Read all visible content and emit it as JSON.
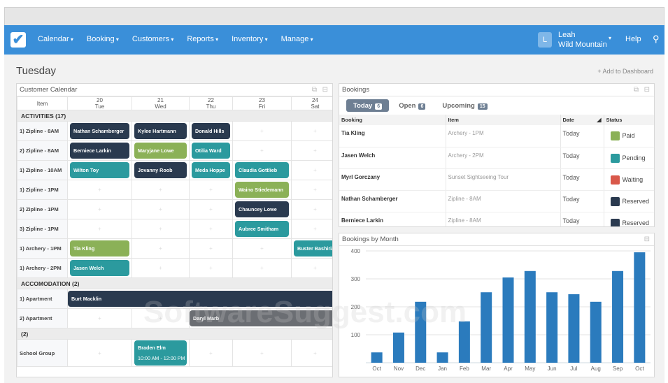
{
  "nav": {
    "logo": "✔",
    "items": [
      "Calendar",
      "Booking",
      "Customers",
      "Reports",
      "Inventory",
      "Manage"
    ],
    "user_initial": "L",
    "user_name": "Leah",
    "user_org": "Wild Mountain",
    "help": "Help"
  },
  "page": {
    "title": "Tuesday",
    "add_to_dashboard": "+ Add to Dashboard"
  },
  "colors": {
    "dark": "#2a3a4f",
    "green": "#8bb157",
    "teal": "#2b9a9e",
    "grey": "#6b6e73",
    "red": "#d9584a",
    "accent": "#3a8fd9"
  },
  "calendar": {
    "title": "Customer Calendar",
    "item_header": "Item",
    "days": [
      {
        "num": "20",
        "day": "Tue"
      },
      {
        "num": "21",
        "day": "Wed"
      },
      {
        "num": "22",
        "day": "Thu"
      },
      {
        "num": "23",
        "day": "Fri"
      },
      {
        "num": "24",
        "day": "Sat"
      }
    ],
    "empty_cell": "+",
    "sections": [
      {
        "label": "ACTIVITIES (17)",
        "rows": [
          {
            "item": "1) Zipline - 8AM",
            "cells": [
              {
                "name": "Nathan Schamberger",
                "color": "dark"
              },
              {
                "name": "Kylee Hartmann",
                "color": "dark"
              },
              {
                "name": "Donald Hills",
                "color": "dark"
              },
              null,
              null
            ]
          },
          {
            "item": "2) Zipline - 8AM",
            "cells": [
              {
                "name": "Berniece Larkin",
                "color": "dark"
              },
              {
                "name": "Maryjane Lowe",
                "color": "green"
              },
              {
                "name": "Otilia Ward",
                "color": "teal"
              },
              null,
              null
            ]
          },
          {
            "item": "1) Zipline - 10AM",
            "cells": [
              {
                "name": "Wilton Toy",
                "color": "teal"
              },
              {
                "name": "Jovanny Roob",
                "color": "dark"
              },
              {
                "name": "Meda Hoppe",
                "color": "teal"
              },
              {
                "name": "Claudia Gottlieb",
                "color": "teal"
              },
              null
            ]
          },
          {
            "item": "1) Zipline - 1PM",
            "cells": [
              null,
              null,
              null,
              {
                "name": "Waino Stiedemann",
                "color": "green"
              },
              null
            ]
          },
          {
            "item": "2) Zipline - 1PM",
            "cells": [
              null,
              null,
              null,
              {
                "name": "Chauncey Lowe",
                "color": "dark"
              },
              null
            ]
          },
          {
            "item": "3) Zipline - 1PM",
            "cells": [
              null,
              null,
              null,
              {
                "name": "Aubree Smitham",
                "color": "teal"
              },
              null
            ]
          },
          {
            "item": "1) Archery - 1PM",
            "cells": [
              {
                "name": "Tia Kling",
                "color": "green"
              },
              null,
              null,
              null,
              {
                "name": "Buster Bashirian",
                "color": "teal"
              }
            ]
          },
          {
            "item": "1) Archery - 2PM",
            "cells": [
              {
                "name": "Jasen Welch",
                "color": "teal"
              },
              null,
              null,
              null,
              null
            ]
          }
        ]
      },
      {
        "label": "ACCOMODATION (2)",
        "rows": [
          {
            "item": "1) Apartment",
            "spans": [
              {
                "start": 0,
                "span": 5,
                "name": "Burt Macklin",
                "color": "dark"
              }
            ]
          },
          {
            "item": "2) Apartment",
            "spans": [
              {
                "start": 0,
                "span": 1
              },
              {
                "start": 1,
                "span": 1
              },
              {
                "start": 2,
                "span": 3,
                "name": "Daryl Marb",
                "color": "grey"
              }
            ]
          }
        ]
      },
      {
        "label": "(2)",
        "rows": [
          {
            "item": "School Group",
            "cells": [
              null,
              {
                "name": "Braden Elm",
                "time": "10:00 AM - 12:00 PM",
                "color": "teal"
              },
              null,
              null,
              null
            ]
          }
        ]
      }
    ]
  },
  "bookings": {
    "title": "Bookings",
    "tabs": [
      {
        "label": "Today",
        "count": "6",
        "active": true
      },
      {
        "label": "Open",
        "count": "6"
      },
      {
        "label": "Upcoming",
        "count": "15"
      }
    ],
    "columns": [
      "Booking",
      "Item",
      "Date",
      "Status"
    ],
    "rows": [
      {
        "booking": "Tia Kling",
        "item": "Archery - 1PM",
        "date": "Today",
        "status": "Paid",
        "color": "green"
      },
      {
        "booking": "Jasen Welch",
        "item": "Archery - 2PM",
        "date": "Today",
        "status": "Pending",
        "color": "teal"
      },
      {
        "booking": "Myrl Gorczany",
        "item": "Sunset Sightseeing Tour",
        "date": "Today",
        "status": "Waiting",
        "color": "red"
      },
      {
        "booking": "Nathan Schamberger",
        "item": "Zipline - 8AM",
        "date": "Today",
        "status": "Reserved",
        "color": "dark"
      },
      {
        "booking": "Berniece Larkin",
        "item": "Zipline - 8AM",
        "date": "Today",
        "status": "Reserved",
        "color": "dark"
      }
    ]
  },
  "chart_data": {
    "type": "bar",
    "title": "Bookings by Month",
    "categories": [
      "Oct",
      "Nov",
      "Dec",
      "Jan",
      "Feb",
      "Mar",
      "Apr",
      "May",
      "Jun",
      "Jul",
      "Aug",
      "Sep",
      "Oct"
    ],
    "values": [
      37,
      108,
      218,
      37,
      148,
      252,
      305,
      328,
      252,
      245,
      218,
      328,
      395
    ],
    "ylim": [
      0,
      400
    ],
    "yticks": [
      100,
      200,
      300,
      400
    ],
    "grid": true,
    "color": "#2b7bbd"
  },
  "watermark": "SoftwareSuggest.com"
}
